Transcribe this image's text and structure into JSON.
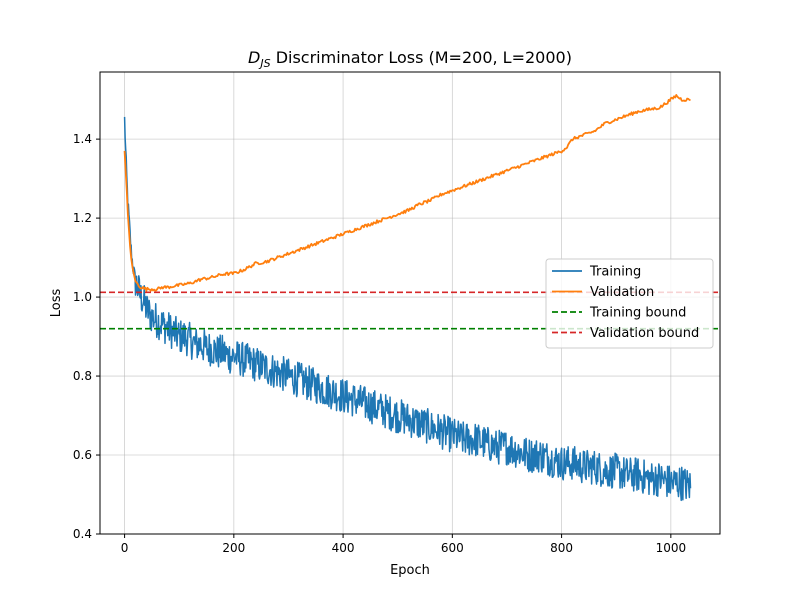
{
  "chart_data": {
    "type": "line",
    "title_main": "D",
    "title_sub": "JS",
    "title_rest": " Discriminator Loss (M=200, L=2000)",
    "xlabel": "Epoch",
    "ylabel": "Loss",
    "xlim": [
      -45,
      1090
    ],
    "ylim": [
      0.4,
      1.57
    ],
    "xticks": [
      0,
      200,
      400,
      600,
      800,
      1000
    ],
    "yticks": [
      0.4,
      0.6,
      0.8,
      1.0,
      1.2,
      1.4
    ],
    "ytick_labels": [
      "0.4",
      "0.6",
      "0.8",
      "1.0",
      "1.2",
      "1.4"
    ],
    "grid": true,
    "legend_position": "center-right",
    "series": [
      {
        "name": "Training",
        "color": "#1f77b4",
        "style": "solid",
        "x": [
          0,
          2,
          4,
          6,
          8,
          10,
          12,
          15,
          20,
          25,
          30,
          35,
          40,
          50,
          60,
          70,
          80,
          90,
          100,
          110,
          120,
          130,
          140,
          150,
          160,
          170,
          180,
          190,
          200,
          220,
          240,
          260,
          280,
          300,
          320,
          340,
          360,
          380,
          400,
          420,
          440,
          460,
          480,
          500,
          520,
          540,
          560,
          580,
          600,
          620,
          640,
          660,
          680,
          700,
          720,
          740,
          760,
          780,
          800,
          820,
          840,
          860,
          880,
          900,
          920,
          940,
          960,
          980,
          1000,
          1020,
          1036
        ],
        "y": [
          1.45,
          1.37,
          1.3,
          1.24,
          1.2,
          1.16,
          1.12,
          1.08,
          1.04,
          1.02,
          1.0,
          0.99,
          0.97,
          0.95,
          0.94,
          0.93,
          0.92,
          0.91,
          0.9,
          0.9,
          0.89,
          0.88,
          0.88,
          0.87,
          0.87,
          0.86,
          0.86,
          0.85,
          0.85,
          0.84,
          0.83,
          0.82,
          0.81,
          0.8,
          0.79,
          0.78,
          0.77,
          0.76,
          0.75,
          0.74,
          0.73,
          0.72,
          0.71,
          0.7,
          0.69,
          0.68,
          0.67,
          0.66,
          0.65,
          0.64,
          0.64,
          0.63,
          0.62,
          0.62,
          0.61,
          0.6,
          0.6,
          0.59,
          0.58,
          0.58,
          0.57,
          0.57,
          0.56,
          0.56,
          0.55,
          0.55,
          0.54,
          0.54,
          0.53,
          0.53,
          0.52
        ]
      },
      {
        "name": "Validation",
        "color": "#ff7f0e",
        "style": "solid",
        "x": [
          0,
          2,
          4,
          6,
          8,
          10,
          12,
          15,
          20,
          25,
          30,
          40,
          50,
          60,
          70,
          80,
          90,
          100,
          120,
          140,
          160,
          180,
          200,
          220,
          240,
          260,
          280,
          300,
          320,
          340,
          360,
          380,
          400,
          420,
          440,
          460,
          480,
          500,
          520,
          540,
          560,
          580,
          600,
          620,
          640,
          660,
          680,
          700,
          720,
          740,
          760,
          780,
          800,
          810,
          820,
          840,
          860,
          880,
          900,
          920,
          940,
          960,
          980,
          1000,
          1010,
          1020,
          1036
        ],
        "y": [
          1.37,
          1.32,
          1.27,
          1.21,
          1.17,
          1.13,
          1.1,
          1.07,
          1.04,
          1.03,
          1.025,
          1.02,
          1.02,
          1.02,
          1.025,
          1.025,
          1.028,
          1.03,
          1.035,
          1.045,
          1.05,
          1.058,
          1.06,
          1.07,
          1.085,
          1.09,
          1.1,
          1.11,
          1.12,
          1.13,
          1.14,
          1.15,
          1.16,
          1.17,
          1.18,
          1.19,
          1.2,
          1.21,
          1.22,
          1.235,
          1.245,
          1.26,
          1.27,
          1.28,
          1.29,
          1.3,
          1.31,
          1.32,
          1.33,
          1.34,
          1.35,
          1.36,
          1.37,
          1.38,
          1.4,
          1.41,
          1.42,
          1.44,
          1.45,
          1.46,
          1.47,
          1.475,
          1.48,
          1.5,
          1.51,
          1.5,
          1.5
        ]
      },
      {
        "name": "Training bound",
        "color": "#008000",
        "style": "dashed",
        "hline": 0.92
      },
      {
        "name": "Validation bound",
        "color": "#d62728",
        "style": "dashed",
        "hline": 1.012
      }
    ]
  }
}
